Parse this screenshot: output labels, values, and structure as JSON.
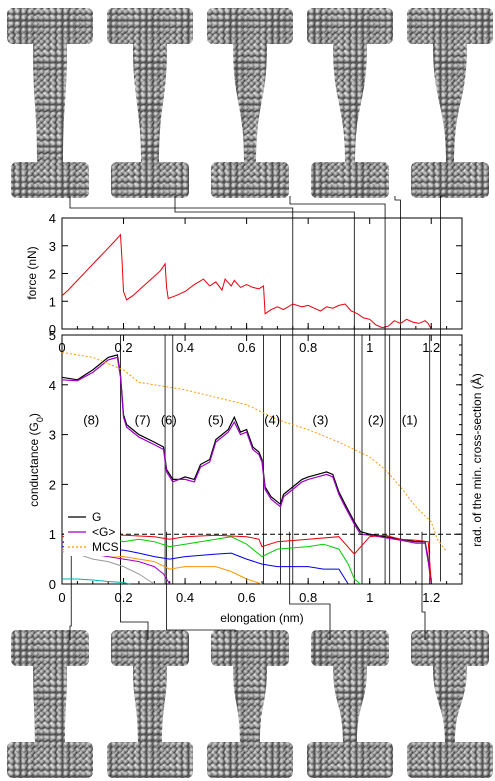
{
  "chart_data": [
    {
      "type": "line",
      "panel": "force",
      "ylabel": "force (nN)",
      "ylim": [
        0,
        4
      ],
      "xlim": [
        0,
        1.3
      ],
      "y_ticks": [
        "0",
        "1",
        "2",
        "3",
        "4"
      ],
      "series": [
        {
          "color": "#e8000b",
          "x": [
            0,
            0.02,
            0.05,
            0.08,
            0.11,
            0.14,
            0.17,
            0.19,
            0.195,
            0.2,
            0.21,
            0.23,
            0.26,
            0.29,
            0.32,
            0.335,
            0.34,
            0.345,
            0.37,
            0.4,
            0.43,
            0.46,
            0.48,
            0.5,
            0.52,
            0.53,
            0.55,
            0.56,
            0.58,
            0.6,
            0.62,
            0.64,
            0.655,
            0.66,
            0.68,
            0.7,
            0.72,
            0.75,
            0.78,
            0.8,
            0.82,
            0.84,
            0.86,
            0.88,
            0.9,
            0.92,
            0.94,
            0.96,
            0.98,
            1.0,
            1.02,
            1.04,
            1.06,
            1.08,
            1.1,
            1.12,
            1.14,
            1.16,
            1.18,
            1.19,
            1.2
          ],
          "y": [
            1.2,
            1.4,
            1.75,
            2.1,
            2.45,
            2.8,
            3.15,
            3.4,
            2.5,
            1.35,
            1.05,
            1.2,
            1.5,
            1.8,
            2.1,
            2.35,
            1.5,
            1.1,
            1.2,
            1.35,
            1.6,
            1.8,
            1.55,
            1.7,
            1.4,
            1.8,
            1.55,
            1.75,
            1.5,
            1.6,
            1.5,
            1.45,
            1.55,
            0.55,
            0.7,
            0.8,
            0.7,
            0.9,
            0.8,
            0.85,
            0.75,
            0.65,
            0.8,
            0.75,
            0.85,
            0.9,
            0.65,
            0.55,
            0.4,
            0.35,
            0.15,
            0.05,
            0.1,
            0.3,
            0.2,
            0.35,
            0.25,
            0.2,
            0.3,
            0.2,
            0.0
          ]
        }
      ]
    },
    {
      "type": "line",
      "panel": "conductance",
      "ylabel": "conductance (G0)",
      "ylabel_sub": "0",
      "ylabel_main": "conductance (G",
      "ylabel_close": ")",
      "xlabel": "elongation (nm)",
      "right_ylabel": "rad. of the min. cross-section (Å)",
      "ylim": [
        0,
        5
      ],
      "xlim": [
        0,
        1.3
      ],
      "x_ticks": [
        "0",
        "0.2",
        "0.4",
        "0.6",
        "0.8",
        "1",
        "1.2"
      ],
      "y_ticks": [
        "0",
        "1",
        "2",
        "3",
        "4",
        "5"
      ],
      "legend": [
        "G",
        "<G>",
        "MCS"
      ],
      "region_labels": [
        "(8)",
        "(7)",
        "(6)",
        "(5)",
        "(4)",
        "(3)",
        "(2)",
        "(1)"
      ],
      "dashed_reference_y": 1,
      "series": [
        {
          "name": "G",
          "color": "#000000",
          "x": [
            0,
            0.05,
            0.1,
            0.15,
            0.18,
            0.19,
            0.2,
            0.21,
            0.25,
            0.3,
            0.33,
            0.34,
            0.35,
            0.36,
            0.38,
            0.4,
            0.43,
            0.45,
            0.48,
            0.5,
            0.52,
            0.54,
            0.56,
            0.58,
            0.6,
            0.62,
            0.64,
            0.65,
            0.66,
            0.68,
            0.7,
            0.71,
            0.72,
            0.75,
            0.78,
            0.8,
            0.83,
            0.86,
            0.88,
            0.9,
            0.92,
            0.95,
            0.97,
            1.0,
            1.05,
            1.1,
            1.15,
            1.18,
            1.19,
            1.2
          ],
          "y": [
            4.15,
            4.1,
            4.3,
            4.55,
            4.6,
            4.2,
            3.4,
            3.2,
            3.0,
            2.85,
            2.75,
            2.3,
            2.2,
            2.1,
            2.1,
            2.15,
            2.1,
            2.4,
            2.5,
            2.9,
            3.0,
            3.1,
            3.35,
            3.05,
            3.1,
            2.75,
            2.65,
            2.5,
            1.95,
            1.75,
            1.65,
            1.6,
            1.8,
            1.95,
            2.1,
            2.15,
            2.2,
            2.25,
            2.2,
            1.85,
            1.6,
            1.25,
            1.05,
            1.0,
            0.95,
            0.9,
            0.85,
            0.85,
            0.5,
            0.05
          ]
        },
        {
          "name": "<G>",
          "color": "#a000c8",
          "x": [
            0,
            0.05,
            0.1,
            0.15,
            0.18,
            0.19,
            0.2,
            0.21,
            0.25,
            0.3,
            0.33,
            0.34,
            0.35,
            0.36,
            0.38,
            0.4,
            0.43,
            0.45,
            0.48,
            0.5,
            0.52,
            0.54,
            0.56,
            0.58,
            0.6,
            0.62,
            0.64,
            0.65,
            0.66,
            0.68,
            0.7,
            0.71,
            0.72,
            0.75,
            0.78,
            0.8,
            0.83,
            0.86,
            0.88,
            0.9,
            0.92,
            0.95,
            0.97,
            1.0,
            1.05,
            1.1,
            1.15,
            1.18,
            1.19,
            1.2
          ],
          "y": [
            4.1,
            4.08,
            4.25,
            4.5,
            4.55,
            4.15,
            3.35,
            3.15,
            2.95,
            2.8,
            2.7,
            2.25,
            2.15,
            2.05,
            2.1,
            2.1,
            2.05,
            2.35,
            2.45,
            2.85,
            2.95,
            3.05,
            3.25,
            3.0,
            3.05,
            2.7,
            2.6,
            2.45,
            1.9,
            1.7,
            1.6,
            1.55,
            1.75,
            1.9,
            2.05,
            2.1,
            2.15,
            2.2,
            2.15,
            1.8,
            1.55,
            1.2,
            1.0,
            0.98,
            0.93,
            0.88,
            0.82,
            0.82,
            0.45,
            0.02
          ]
        },
        {
          "name": "MCS",
          "color": "#ff9900",
          "x": [
            0,
            0.1,
            0.2,
            0.25,
            0.3,
            0.4,
            0.5,
            0.6,
            0.7,
            0.8,
            0.9,
            1.0,
            1.05,
            1.1,
            1.15,
            1.2,
            1.22,
            1.25
          ],
          "y": [
            4.65,
            4.55,
            4.3,
            4.05,
            4.0,
            3.9,
            3.75,
            3.6,
            3.3,
            3.1,
            2.85,
            2.55,
            2.3,
            1.95,
            1.55,
            1.25,
            0.9,
            0.65
          ]
        },
        {
          "color": "#e8000b",
          "x": [
            0,
            0.1,
            0.2,
            0.3,
            0.35,
            0.4,
            0.5,
            0.6,
            0.64,
            0.65,
            0.7,
            0.8,
            0.9,
            0.95,
            1.0,
            1.05,
            1.1,
            1.15,
            1.19,
            1.2
          ],
          "y": [
            0.95,
            1.0,
            0.98,
            0.95,
            0.9,
            0.95,
            0.98,
            0.95,
            0.9,
            0.75,
            0.85,
            0.9,
            0.95,
            0.6,
            0.95,
            0.98,
            0.9,
            0.88,
            0.85,
            0.05
          ]
        },
        {
          "color": "#00cc00",
          "x": [
            0,
            0.05,
            0.1,
            0.15,
            0.2,
            0.25,
            0.3,
            0.35,
            0.4,
            0.5,
            0.55,
            0.6,
            0.65,
            0.7,
            0.8,
            0.85,
            0.9,
            0.93,
            0.95,
            0.97
          ],
          "y": [
            0.85,
            0.9,
            0.98,
            0.95,
            0.85,
            0.9,
            0.85,
            0.75,
            0.8,
            0.9,
            0.95,
            0.8,
            0.55,
            0.7,
            0.75,
            0.8,
            0.7,
            0.4,
            0.1,
            0.0
          ]
        },
        {
          "color": "#0000e6",
          "x": [
            0,
            0.1,
            0.2,
            0.25,
            0.3,
            0.35,
            0.4,
            0.5,
            0.55,
            0.6,
            0.65,
            0.7,
            0.8,
            0.85,
            0.9,
            0.92,
            0.93
          ],
          "y": [
            0.75,
            0.7,
            0.68,
            0.62,
            0.55,
            0.5,
            0.55,
            0.6,
            0.62,
            0.5,
            0.4,
            0.35,
            0.35,
            0.3,
            0.3,
            0.1,
            0.0
          ]
        },
        {
          "color": "#a000c8",
          "x": [
            0,
            0.05,
            0.1,
            0.15,
            0.2,
            0.25,
            0.3,
            0.33,
            0.35
          ],
          "y": [
            0.85,
            0.7,
            0.6,
            0.55,
            0.5,
            0.45,
            0.35,
            0.2,
            0.0
          ]
        },
        {
          "color": "#ff9900",
          "x": [
            0,
            0.1,
            0.2,
            0.3,
            0.35,
            0.4,
            0.5,
            0.55,
            0.6,
            0.65
          ],
          "y": [
            0.7,
            0.6,
            0.55,
            0.45,
            0.3,
            0.35,
            0.35,
            0.25,
            0.1,
            0.0
          ]
        },
        {
          "color": "#999999",
          "x": [
            0,
            0.05,
            0.1,
            0.15,
            0.2,
            0.25,
            0.3
          ],
          "y": [
            0.65,
            0.6,
            0.5,
            0.45,
            0.35,
            0.2,
            0.0
          ]
        },
        {
          "color": "#00b4b4",
          "x": [
            0,
            0.05,
            0.1,
            0.15,
            0.2,
            0.22
          ],
          "y": [
            0.1,
            0.1,
            0.08,
            0.05,
            0.03,
            0.0
          ]
        }
      ]
    }
  ],
  "snapshot_links": {
    "top": [
      0.75,
      0.95,
      1.05,
      1.1,
      1.23
    ],
    "bottom": [
      0.03,
      0.19,
      0.34,
      0.74,
      1.17
    ]
  }
}
